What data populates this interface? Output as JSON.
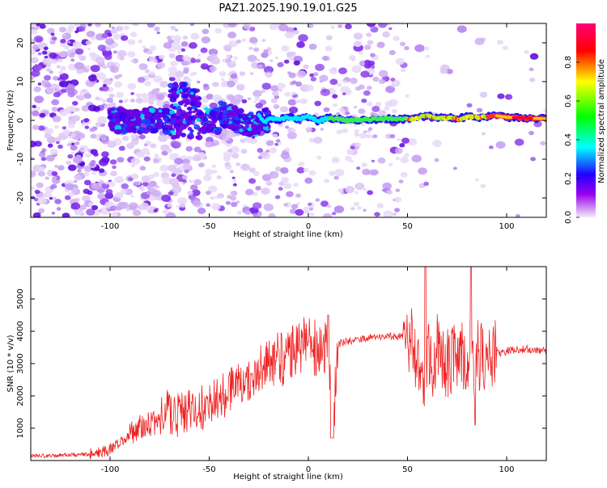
{
  "title": "PAZ1.2025.190.19.01.G25",
  "chart_data": [
    {
      "type": "heatmap",
      "xlabel": "Height of straight line (km)",
      "ylabel": "Frequency (Hz)",
      "xlim": [
        -140,
        120
      ],
      "ylim": [
        -25,
        25
      ],
      "xticks": [
        -100,
        -50,
        0,
        50,
        100
      ],
      "yticks": [
        -20,
        -10,
        0,
        10,
        20
      ],
      "colorbar": {
        "label": "Normalized spectral amplitude",
        "range": [
          0,
          1
        ],
        "ticks": [
          0,
          0.2,
          0.4,
          0.6,
          0.8
        ],
        "colormap": [
          "#f0e8f8",
          "#8800ee",
          "#2200ff",
          "#00ffff",
          "#00ff00",
          "#ffff00",
          "#ff0000",
          "#ff0088"
        ]
      },
      "signal_line": [
        [
          -25,
          1.5
        ],
        [
          -22,
          -0.5
        ],
        [
          -20,
          0.5
        ],
        [
          -15,
          0.2
        ],
        [
          -10,
          0.8
        ],
        [
          -5,
          0.3
        ],
        [
          0,
          1.0
        ],
        [
          5,
          -0.2
        ],
        [
          10,
          0.6
        ],
        [
          20,
          0.0
        ],
        [
          30,
          0.2
        ],
        [
          40,
          0.4
        ],
        [
          50,
          0.3
        ],
        [
          55,
          0.6
        ],
        [
          60,
          1.2
        ],
        [
          65,
          0.5
        ],
        [
          70,
          0.8
        ],
        [
          75,
          0.4
        ],
        [
          80,
          1.0
        ],
        [
          85,
          0.8
        ],
        [
          90,
          0.9
        ],
        [
          95,
          1.2
        ],
        [
          100,
          0.8
        ],
        [
          110,
          0.6
        ],
        [
          120,
          0.4
        ]
      ]
    },
    {
      "type": "line",
      "xlabel": "Height of straight line (km)",
      "ylabel": "SNR (10 * v/v)",
      "xlim": [
        -140,
        120
      ],
      "ylim": [
        0,
        6000
      ],
      "xticks": [
        -100,
        -50,
        0,
        50,
        100
      ],
      "yticks": [
        1000,
        2000,
        3000,
        4000,
        5000
      ],
      "color": "#ee2222",
      "series": [
        {
          "x": [
            -140,
            -130,
            -120,
            -110,
            -100,
            -95,
            -90,
            -85,
            -80,
            -75,
            -70,
            -65,
            -60,
            -55,
            -50,
            -45,
            -40,
            -35,
            -30,
            -25,
            -20,
            -15,
            -10,
            -5,
            0,
            5,
            10,
            12,
            15,
            20,
            25,
            30,
            35,
            40,
            45,
            50,
            52,
            55,
            58,
            60,
            62,
            65,
            70,
            75,
            80,
            82,
            85,
            90,
            95,
            97,
            100,
            110,
            120
          ],
          "values": [
            150,
            140,
            180,
            200,
            300,
            500,
            700,
            900,
            1000,
            1100,
            1300,
            1200,
            1300,
            1400,
            1500,
            1700,
            1900,
            2100,
            2300,
            2600,
            2900,
            3100,
            3300,
            3500,
            3600,
            3400,
            3500,
            800,
            3600,
            3700,
            3750,
            3800,
            3800,
            3850,
            3850,
            3900,
            3700,
            3000,
            2500,
            3300,
            2900,
            3500,
            3000,
            3300,
            3200,
            2600,
            3300,
            3000,
            3500,
            3300,
            3400,
            3450,
            3400
          ]
        }
      ]
    }
  ]
}
